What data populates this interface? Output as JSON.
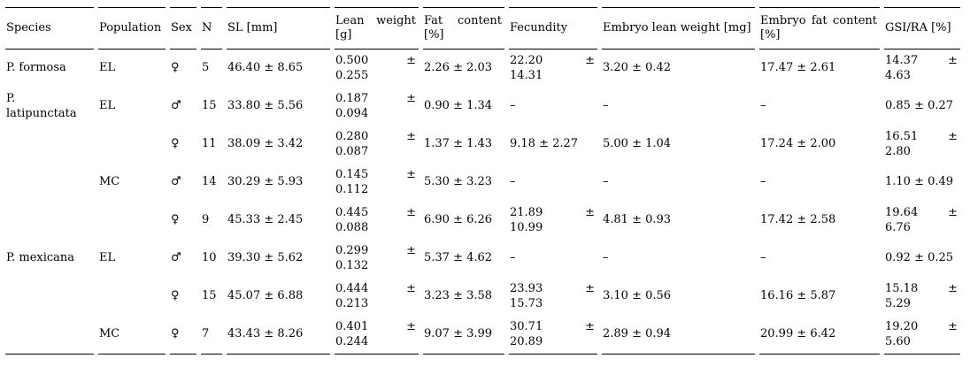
{
  "table": {
    "columns": [
      {
        "key": "species",
        "label": "Species"
      },
      {
        "key": "population",
        "label": "Population"
      },
      {
        "key": "sex",
        "label": "Sex"
      },
      {
        "key": "n",
        "label": "N"
      },
      {
        "key": "sl",
        "label": "SL [mm]"
      },
      {
        "key": "lean_weight",
        "label": "Lean weight [g]"
      },
      {
        "key": "fat_content",
        "label": "Fat content [%]"
      },
      {
        "key": "fecundity",
        "label": "Fecundity"
      },
      {
        "key": "embryo_lean_weight",
        "label": "Embryo lean weight [mg]"
      },
      {
        "key": "embryo_fat_content",
        "label": "Embryo fat content [%]"
      },
      {
        "key": "gsi_ra",
        "label": "GSI/RA [%]"
      }
    ],
    "rows": [
      {
        "species": "P. formosa",
        "population": "EL",
        "sex": "♀",
        "n": "5",
        "sl": "46.40 ± 8.65",
        "lean_weight": "0.500 ± 0.255",
        "fat_content": "2.26 ± 2.03",
        "fecundity": "22.20 ± 14.31",
        "embryo_lean_weight": "3.20 ± 0.42",
        "embryo_fat_content": "17.47 ± 2.61",
        "gsi_ra": "14.37 ± 4.63"
      },
      {
        "species": "P. latipunctata",
        "population": "EL",
        "sex": "♂",
        "n": "15",
        "sl": "33.80 ± 5.56",
        "lean_weight": "0.187 ± 0.094",
        "fat_content": "0.90 ± 1.34",
        "fecundity": "–",
        "embryo_lean_weight": "–",
        "embryo_fat_content": "–",
        "gsi_ra": "0.85 ± 0.27"
      },
      {
        "species": "",
        "population": "",
        "sex": "♀",
        "n": "11",
        "sl": "38.09 ± 3.42",
        "lean_weight": "0.280 ± 0.087",
        "fat_content": "1.37 ± 1.43",
        "fecundity": "9.18 ± 2.27",
        "embryo_lean_weight": "5.00 ± 1.04",
        "embryo_fat_content": "17.24 ± 2.00",
        "gsi_ra": "16.51 ± 2.80"
      },
      {
        "species": "",
        "population": "MC",
        "sex": "♂",
        "n": "14",
        "sl": "30.29 ± 5.93",
        "lean_weight": "0.145 ± 0.112",
        "fat_content": "5.30 ± 3.23",
        "fecundity": "–",
        "embryo_lean_weight": "–",
        "embryo_fat_content": "–",
        "gsi_ra": "1.10 ± 0.49"
      },
      {
        "species": "",
        "population": "",
        "sex": "♀",
        "n": "9",
        "sl": "45.33 ± 2.45",
        "lean_weight": "0.445 ± 0.088",
        "fat_content": "6.90 ± 6.26",
        "fecundity": "21.89 ± 10.99",
        "embryo_lean_weight": "4.81 ± 0.93",
        "embryo_fat_content": "17.42 ± 2.58",
        "gsi_ra": "19.64 ± 6.76"
      },
      {
        "species": "P. mexicana",
        "population": "EL",
        "sex": "♂",
        "n": "10",
        "sl": "39.30 ± 5.62",
        "lean_weight": "0.299 ± 0.132",
        "fat_content": "5.37 ± 4.62",
        "fecundity": "–",
        "embryo_lean_weight": "–",
        "embryo_fat_content": "–",
        "gsi_ra": "0.92 ± 0.25"
      },
      {
        "species": "",
        "population": "",
        "sex": "♀",
        "n": "15",
        "sl": "45.07 ± 6.88",
        "lean_weight": "0.444 ± 0.213",
        "fat_content": "3.23 ± 3.58",
        "fecundity": "23.93 ± 15.73",
        "embryo_lean_weight": "3.10 ± 0.56",
        "embryo_fat_content": "16.16 ± 5.87",
        "gsi_ra": "15.18 ± 5.29"
      },
      {
        "species": "",
        "population": "MC",
        "sex": "♀",
        "n": "7",
        "sl": "43.43 ± 8.26",
        "lean_weight": "0.401 ± 0.244",
        "fat_content": "9.07 ± 3.99",
        "fecundity": "30.71 ± 20.89",
        "embryo_lean_weight": "2.89 ± 0.94",
        "embryo_fat_content": "20.99 ± 6.42",
        "gsi_ra": "19.20 ± 5.60"
      }
    ],
    "colors": {
      "rule": "#000000",
      "text": "#000000",
      "background": "#ffffff"
    }
  }
}
